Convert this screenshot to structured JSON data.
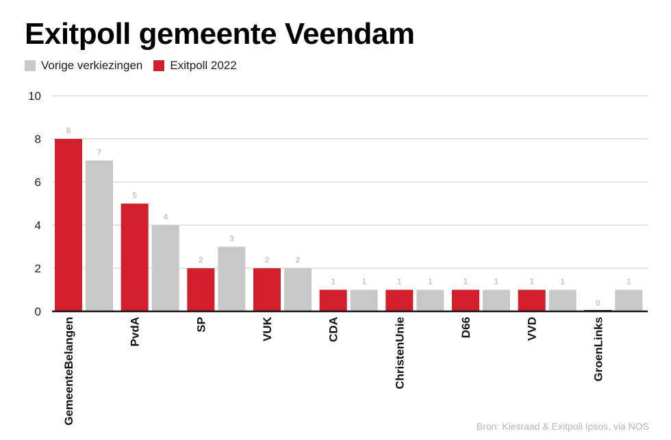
{
  "title": "Exitpoll gemeente Veendam",
  "legend": [
    {
      "label": "Vorige verkiezingen",
      "color": "#c8c8c8"
    },
    {
      "label": "Exitpoll 2022",
      "color": "#d21f2b"
    }
  ],
  "source": "Bron: Kiesraad & Exitpoll Ipsos, via NOS",
  "chart_data": {
    "type": "bar",
    "title": "Exitpoll gemeente Veendam",
    "categories": [
      "GemeenteBelangen",
      "PvdA",
      "SP",
      "VUK",
      "CDA",
      "ChristenUnie",
      "D66",
      "VVD",
      "GroenLinks"
    ],
    "series": [
      {
        "name": "Exitpoll 2022",
        "color": "#d21f2b",
        "values": [
          8,
          5,
          2,
          2,
          1,
          1,
          1,
          1,
          0
        ]
      },
      {
        "name": "Vorige verkiezingen",
        "color": "#c8c8c8",
        "values": [
          7,
          4,
          3,
          2,
          1,
          1,
          1,
          1,
          1
        ]
      }
    ],
    "yticks": [
      "0",
      "2",
      "4",
      "6",
      "8",
      "10"
    ],
    "ylim": [
      0,
      10
    ],
    "grid": true,
    "legend_position": "top-left",
    "xlabel": "",
    "ylabel": ""
  }
}
